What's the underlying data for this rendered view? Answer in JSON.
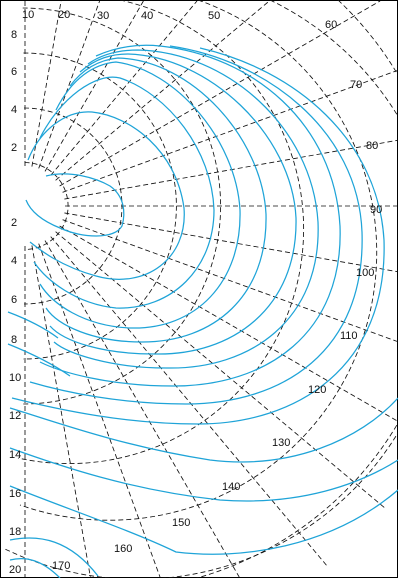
{
  "diagram": {
    "angle_labels": [
      "10",
      "20",
      "30",
      "40",
      "50",
      "60",
      "70",
      "80",
      "90",
      "100",
      "110",
      "120",
      "130",
      "140",
      "150",
      "160",
      "170"
    ],
    "radius_labels_upper": [
      "8",
      "6",
      "4",
      "2"
    ],
    "radius_labels_lower": [
      "2",
      "4",
      "6",
      "8",
      "10",
      "12",
      "14",
      "16",
      "18",
      "20"
    ],
    "colors": {
      "grid": "#111111",
      "contour": "#1fa4d8",
      "frame": "#000000"
    }
  }
}
